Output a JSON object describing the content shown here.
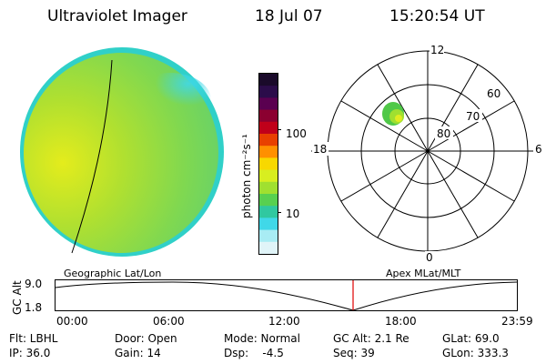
{
  "header": {
    "title": "Ultraviolet Imager",
    "date": "18 Jul 07",
    "time": "15:20:54 UT"
  },
  "colorbar": {
    "unit_label": "photon cm⁻²s⁻¹",
    "ticks": [
      "100",
      "10"
    ],
    "colors_top_to_bottom": [
      "#1a0a2a",
      "#2b0c4a",
      "#5a0050",
      "#8b0030",
      "#c0001a",
      "#e84000",
      "#ff9000",
      "#f8d800",
      "#d8ee20",
      "#a0e030",
      "#58d050",
      "#30c8a0",
      "#40d8e8",
      "#a8ecf4",
      "#e0f4f8"
    ]
  },
  "polar_plot": {
    "mlt_labels": [
      "12",
      "6",
      "0",
      "18"
    ],
    "lat_labels": [
      "60",
      "70",
      "80"
    ],
    "blob_colors": [
      "#50c848",
      "#a0e030",
      "#e0ec20"
    ]
  },
  "orbit_panel": {
    "y_axis_title": "GC Alt",
    "y_ticks": [
      "9.0",
      "1.8"
    ],
    "left_title": "Geographic Lat/Lon",
    "right_title": "Apex  MLat/MLT",
    "x_ticks": [
      "00:00",
      "06:00",
      "12:00",
      "18:00",
      "23:59"
    ],
    "marker_color": "#e00000"
  },
  "info": {
    "filter": "Flt: LBHL",
    "ip": "IP: 36.0",
    "door": "Door: Open",
    "gain": "Gain: 14",
    "mode": "Mode: Normal",
    "dsp": "Dsp:    -4.5",
    "gc_alt": "GC Alt: 2.1 Re",
    "seq": "Seq: 39",
    "glat": "GLat: 69.0",
    "glon": "GLon: 333.3"
  }
}
